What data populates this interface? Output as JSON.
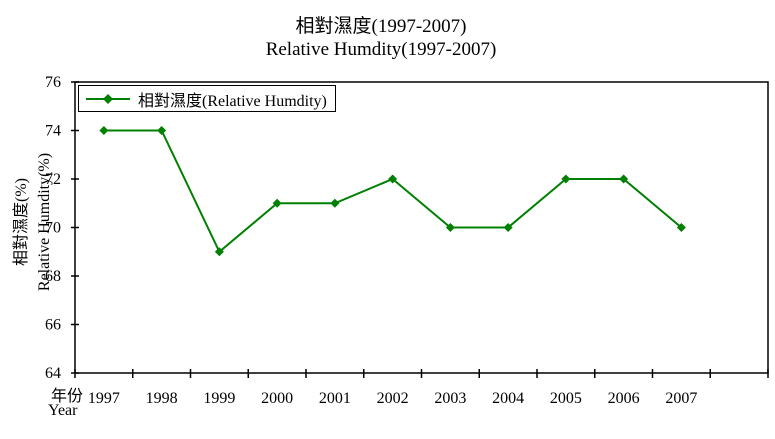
{
  "chart_data": {
    "type": "line",
    "title": "相對濕度(1997-2007)",
    "subtitle": "Relative Humdity(1997-2007)",
    "x": [
      "1997",
      "1998",
      "1999",
      "2000",
      "2001",
      "2002",
      "2003",
      "2004",
      "2005",
      "2006",
      "2007"
    ],
    "series": [
      {
        "name": "相對濕度(Relative Humdity)",
        "values": [
          74,
          74,
          69,
          71,
          71,
          72,
          70,
          70,
          72,
          72,
          70
        ]
      }
    ],
    "xlabel_zh": "年份",
    "xlabel_en": "Year",
    "ylabel_zh": "相對濕度(%)",
    "ylabel_en": "Relative Humdity(%)",
    "ylim": [
      64,
      76
    ],
    "ytick_step": 2,
    "grid": false,
    "legend_position": "top-left",
    "extra_right_category_slot": true,
    "line_color": "#008000",
    "axis_color": "#000000",
    "text_color": "#000000",
    "background_color": "#ffffff"
  }
}
